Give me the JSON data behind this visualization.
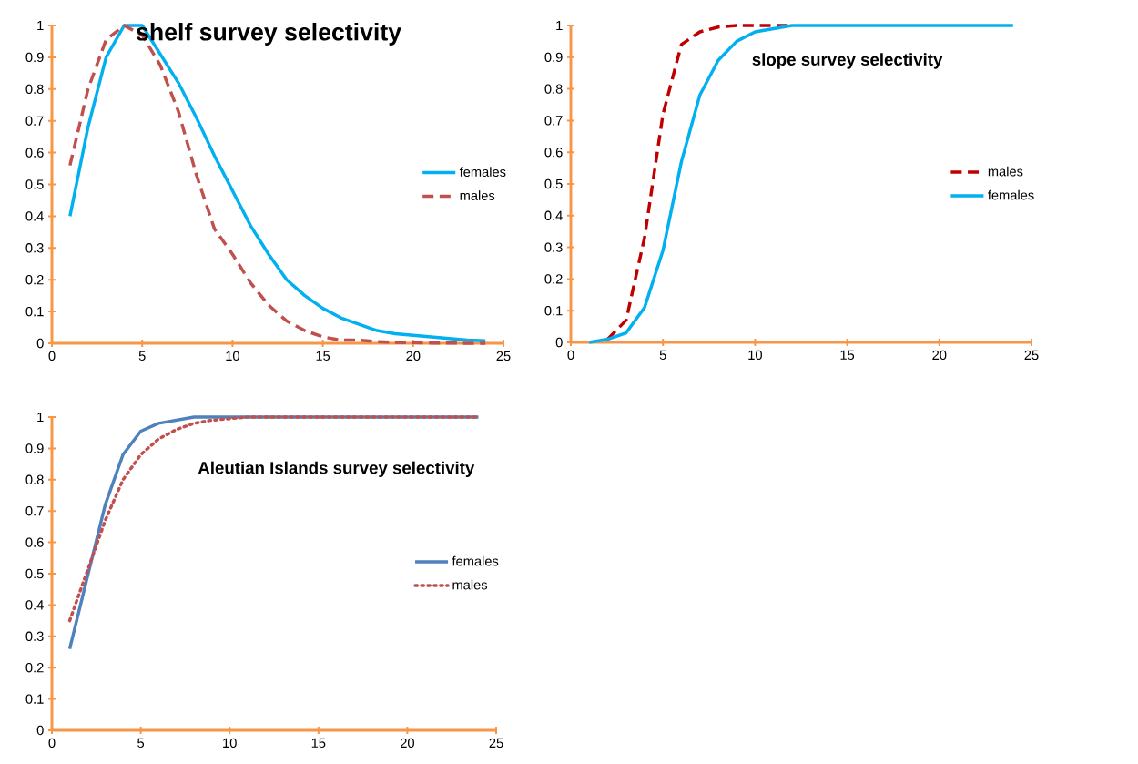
{
  "chart_data": [
    {
      "type": "line",
      "title": "shelf survey selectivity",
      "x": [
        1,
        2,
        3,
        4,
        5,
        6,
        7,
        8,
        9,
        10,
        11,
        12,
        13,
        14,
        15,
        16,
        17,
        18,
        19,
        20,
        21,
        22,
        23,
        24
      ],
      "xlim": [
        0,
        25
      ],
      "xticks": [
        0,
        5,
        10,
        15,
        20,
        25
      ],
      "ylim": [
        0,
        1
      ],
      "yticks": [
        0,
        0.1,
        0.2,
        0.3,
        0.4,
        0.5,
        0.6,
        0.7,
        0.8,
        0.9,
        1
      ],
      "legend": "right",
      "grid": false,
      "series": [
        {
          "name": "females",
          "color": "#00b0f0",
          "line_style": "solid",
          "values": [
            0.4,
            0.68,
            0.9,
            1.0,
            1.0,
            0.91,
            0.82,
            0.71,
            0.59,
            0.48,
            0.37,
            0.28,
            0.2,
            0.15,
            0.11,
            0.08,
            0.06,
            0.04,
            0.03,
            0.025,
            0.02,
            0.015,
            0.01,
            0.008
          ]
        },
        {
          "name": "males",
          "color": "#c0504d",
          "line_style": "dashed",
          "values": [
            0.56,
            0.8,
            0.955,
            1.0,
            0.97,
            0.875,
            0.73,
            0.53,
            0.36,
            0.28,
            0.19,
            0.12,
            0.07,
            0.04,
            0.02,
            0.01,
            0.01,
            0.005,
            0.003,
            0.002,
            0.001,
            0.001,
            0.0,
            0.0
          ]
        }
      ]
    },
    {
      "type": "line",
      "title": "slope survey selectivity",
      "x": [
        1,
        2,
        3,
        4,
        5,
        6,
        7,
        8,
        9,
        10,
        11,
        12,
        13,
        14,
        15,
        16,
        17,
        18,
        19,
        20,
        21,
        22,
        23,
        24
      ],
      "xlim": [
        0,
        25
      ],
      "xticks": [
        0,
        5,
        10,
        15,
        20,
        25
      ],
      "ylim": [
        0,
        1
      ],
      "yticks": [
        0,
        0.1,
        0.2,
        0.3,
        0.4,
        0.5,
        0.6,
        0.7,
        0.8,
        0.9,
        1
      ],
      "legend": "right",
      "grid": false,
      "series": [
        {
          "name": "males",
          "color": "#c00000",
          "line_style": "dashed",
          "values": [
            null,
            0.01,
            0.07,
            0.33,
            0.72,
            0.94,
            0.98,
            0.995,
            1.0,
            1.0,
            1.0,
            1.0,
            null,
            null,
            null,
            null,
            null,
            null,
            null,
            null,
            null,
            null,
            null,
            null
          ]
        },
        {
          "name": "females",
          "color": "#00b0f0",
          "line_style": "solid",
          "values": [
            0.0,
            0.01,
            0.03,
            0.11,
            0.29,
            0.57,
            0.78,
            0.89,
            0.95,
            0.98,
            0.99,
            1.0,
            1.0,
            1.0,
            1.0,
            1.0,
            1.0,
            1.0,
            1.0,
            1.0,
            1.0,
            1.0,
            1.0,
            1.0
          ]
        }
      ]
    },
    {
      "type": "line",
      "title": "Aleutian Islands survey selectivity",
      "x": [
        1,
        2,
        3,
        4,
        5,
        6,
        7,
        8,
        9,
        10,
        11,
        12,
        13,
        14,
        15,
        16,
        17,
        18,
        19,
        20,
        21,
        22,
        23,
        24
      ],
      "xlim": [
        0,
        25
      ],
      "xticks": [
        0,
        5,
        10,
        15,
        20,
        25
      ],
      "ylim": [
        0,
        1
      ],
      "yticks": [
        0,
        0.1,
        0.2,
        0.3,
        0.4,
        0.5,
        0.6,
        0.7,
        0.8,
        0.9,
        1
      ],
      "legend": "right",
      "grid": false,
      "series": [
        {
          "name": "females",
          "color": "#4f81bd",
          "line_style": "solid",
          "values": [
            0.26,
            0.49,
            0.72,
            0.88,
            0.955,
            0.98,
            0.99,
            1.0,
            1.0,
            1.0,
            1.0,
            1.0,
            1.0,
            1.0,
            1.0,
            1.0,
            1.0,
            1.0,
            1.0,
            1.0,
            1.0,
            1.0,
            1.0,
            1.0
          ]
        },
        {
          "name": "males",
          "color": "#c0504d",
          "line_style": "dotted",
          "values": [
            0.35,
            0.51,
            0.67,
            0.8,
            0.88,
            0.93,
            0.96,
            0.98,
            0.99,
            0.995,
            1.0,
            1.0,
            1.0,
            1.0,
            1.0,
            1.0,
            1.0,
            1.0,
            1.0,
            1.0,
            1.0,
            1.0,
            1.0,
            1.0
          ]
        }
      ]
    }
  ]
}
